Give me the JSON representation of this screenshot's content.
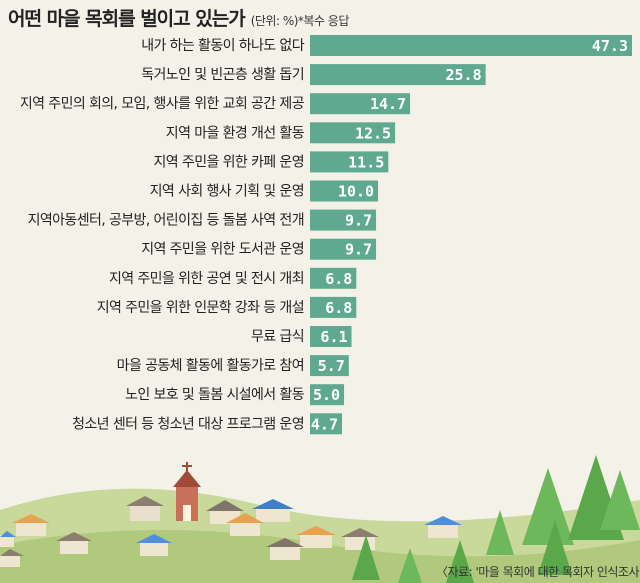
{
  "header": {
    "title": "어떤 마을 목회를 벌이고 있는가",
    "unit_note": "(단위: %)*복수 응답"
  },
  "source": "〈자료: '마을 목회에 대한 목회자 인식조사'〉",
  "colors": {
    "bar": "#5fa991",
    "background": "#f4f1e8",
    "hill": "#b9cf8a",
    "tree": "#5aa84a"
  },
  "chart_data": {
    "type": "bar",
    "orientation": "horizontal",
    "categories": [
      "내가 하는 활동이 하나도 없다",
      "독거노인 및 빈곤층 생활 돕기",
      "지역 주민의 회의, 모임, 행사를 위한 교회 공간 제공",
      "지역 마을 환경 개선 활동",
      "지역 주민을 위한 카페 운영",
      "지역 사회 행사 기획 및 운영",
      "지역아동센터, 공부방, 어린이집 등 돌봄 사역 전개",
      "지역 주민을 위한 도서관 운영",
      "지역 주민을 위한 공연 및 전시 개최",
      "지역 주민을 위한 인문학 강좌 등 개설",
      "무료 급식",
      "마을 공동체 활동에 활동가로 참여",
      "노인 보호 및 돌봄 시설에서 활동",
      "청소년 센터 등 청소년 대상 프로그램 운영"
    ],
    "values": [
      47.3,
      25.8,
      14.7,
      12.5,
      11.5,
      10.0,
      9.7,
      9.7,
      6.8,
      6.8,
      6.1,
      5.7,
      5.0,
      4.7
    ],
    "value_labels": [
      "47.3",
      "25.8",
      "14.7",
      "12.5",
      "11.5",
      "10.0",
      "9.7",
      "9.7",
      "6.8",
      "6.8",
      "6.1",
      "5.7",
      "5.0",
      "4.7"
    ],
    "unit": "%",
    "title": "어떤 마을 목회를 벌이고 있는가"
  }
}
